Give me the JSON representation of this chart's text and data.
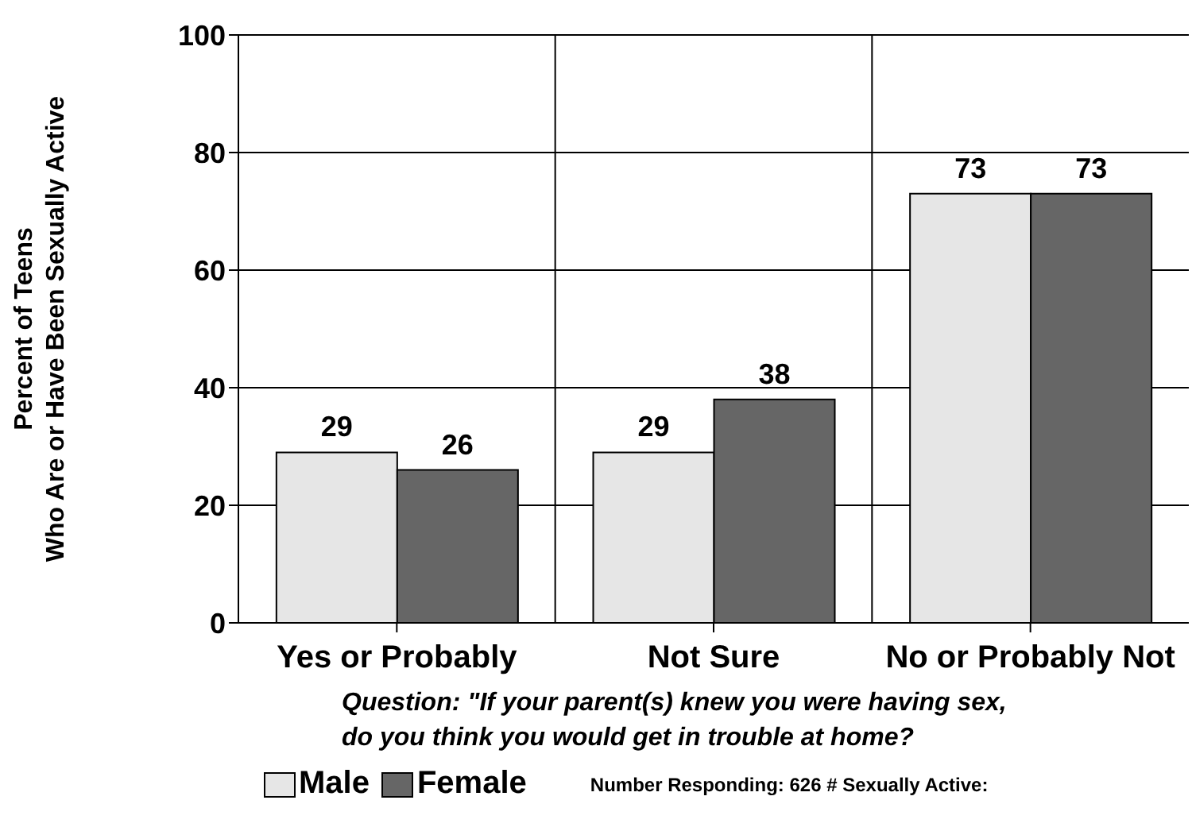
{
  "chart_data": {
    "type": "bar",
    "ylabel": "Percent of Teens\nWho Are or Have Been Sexually Active",
    "categories": [
      "Yes or Probably",
      "Not Sure",
      "No or Probably Not"
    ],
    "series": [
      {
        "name": "Male",
        "color": "#e6e6e6",
        "values": [
          29,
          29,
          73
        ]
      },
      {
        "name": "Female",
        "color": "#666666",
        "values": [
          26,
          38,
          73
        ]
      }
    ],
    "ylim": [
      0,
      100
    ],
    "yticks": [
      0,
      20,
      40,
      60,
      80,
      100
    ],
    "grid": true,
    "legend": "bottom left",
    "data_labels": true,
    "annotations": [
      "Question:  \"If your parent(s) knew you were having sex,\ndo you think you would get in trouble at home?",
      "Number Responding:  626   # Sexually Active:"
    ]
  }
}
